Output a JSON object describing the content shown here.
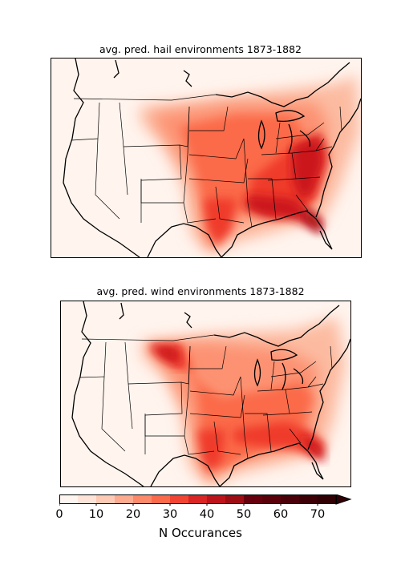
{
  "maps": [
    {
      "title": "avg. pred. hail environments 1873-1882"
    },
    {
      "title": "avg. pred. wind environments 1873-1882"
    }
  ],
  "colorbar": {
    "label": "N Occurances",
    "ticks": [
      "0",
      "10",
      "20",
      "30",
      "40",
      "50",
      "60",
      "70"
    ],
    "min": 0,
    "max": 75,
    "levels": [
      0,
      5,
      10,
      15,
      20,
      25,
      30,
      35,
      40,
      45,
      50,
      55,
      60,
      65,
      70,
      75
    ],
    "colors": [
      "#fff5f0",
      "#fee4d8",
      "#fdcab5",
      "#fcab8f",
      "#fc8a6a",
      "#fb6b4b",
      "#f14432",
      "#d92523",
      "#bc141a",
      "#9d0d14",
      "#67000d",
      "#5a000b",
      "#4a0009",
      "#3d0007",
      "#300005"
    ],
    "extend": "max"
  },
  "colors": {
    "background": "#fff4ee",
    "coast": "#000000",
    "state_lines": "#000000"
  }
}
